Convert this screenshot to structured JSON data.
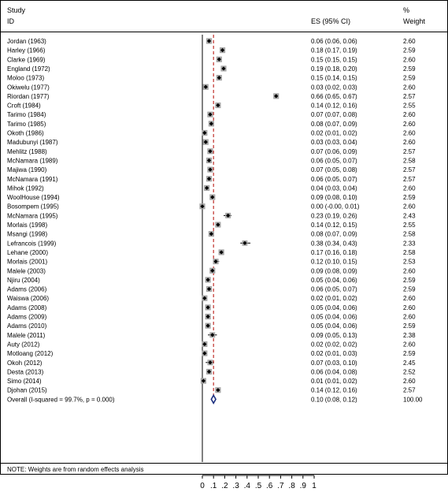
{
  "header": {
    "study_label": "Study",
    "id_label": "ID",
    "es_label": "ES (95% CI)",
    "weight_label_pct": "%",
    "weight_label": "Weight"
  },
  "note": "NOTE: Weights are from random effects analysis",
  "chart_data": {
    "type": "forest",
    "title": "",
    "xlabel": "",
    "xlim": [
      0,
      1
    ],
    "x_ticks": [
      "0",
      ".1",
      ".2",
      ".3",
      ".4",
      ".5",
      ".6",
      ".7",
      ".8",
      ".9",
      "1"
    ],
    "null_line": 0,
    "colors": {
      "box": "#a6a6a6",
      "point": "#000000",
      "ci": "#000000",
      "overall_line": "#c0302b",
      "diamond": "#1c2f7f"
    },
    "studies": [
      {
        "id": "Jordan (1963)",
        "es": 0.06,
        "lo": 0.06,
        "hi": 0.06,
        "es_text": "0.06 (0.06, 0.06)",
        "weight": "2.60"
      },
      {
        "id": "Harley (1966)",
        "es": 0.18,
        "lo": 0.17,
        "hi": 0.19,
        "es_text": "0.18 (0.17, 0.19)",
        "weight": "2.59"
      },
      {
        "id": "Clarke (1969)",
        "es": 0.15,
        "lo": 0.15,
        "hi": 0.15,
        "es_text": "0.15 (0.15, 0.15)",
        "weight": "2.60"
      },
      {
        "id": "England (1972)",
        "es": 0.19,
        "lo": 0.18,
        "hi": 0.2,
        "es_text": "0.19 (0.18, 0.20)",
        "weight": "2.59"
      },
      {
        "id": "Moloo (1973)",
        "es": 0.15,
        "lo": 0.14,
        "hi": 0.15,
        "es_text": "0.15 (0.14, 0.15)",
        "weight": "2.59"
      },
      {
        "id": "Okiwelu (1977)",
        "es": 0.03,
        "lo": 0.02,
        "hi": 0.03,
        "es_text": "0.03 (0.02, 0.03)",
        "weight": "2.60"
      },
      {
        "id": "Riordan (1977)",
        "es": 0.66,
        "lo": 0.65,
        "hi": 0.67,
        "es_text": "0.66 (0.65, 0.67)",
        "weight": "2.57"
      },
      {
        "id": "Croft (1984)",
        "es": 0.14,
        "lo": 0.12,
        "hi": 0.16,
        "es_text": "0.14 (0.12, 0.16)",
        "weight": "2.55"
      },
      {
        "id": "Tarimo (1984)",
        "es": 0.07,
        "lo": 0.07,
        "hi": 0.08,
        "es_text": "0.07 (0.07, 0.08)",
        "weight": "2.60"
      },
      {
        "id": "Tarimo (1985)",
        "es": 0.08,
        "lo": 0.07,
        "hi": 0.09,
        "es_text": "0.08 (0.07, 0.09)",
        "weight": "2.60"
      },
      {
        "id": "Okoth (1986)",
        "es": 0.02,
        "lo": 0.01,
        "hi": 0.02,
        "es_text": "0.02 (0.01, 0.02)",
        "weight": "2.60"
      },
      {
        "id": "Madubunyi (1987)",
        "es": 0.03,
        "lo": 0.03,
        "hi": 0.04,
        "es_text": "0.03 (0.03, 0.04)",
        "weight": "2.60"
      },
      {
        "id": "Mehlitz (1988)",
        "es": 0.07,
        "lo": 0.06,
        "hi": 0.09,
        "es_text": "0.07 (0.06, 0.09)",
        "weight": "2.57"
      },
      {
        "id": "McNamara (1989)",
        "es": 0.06,
        "lo": 0.05,
        "hi": 0.07,
        "es_text": "0.06 (0.05, 0.07)",
        "weight": "2.58"
      },
      {
        "id": "Majiwa (1990)",
        "es": 0.07,
        "lo": 0.05,
        "hi": 0.08,
        "es_text": "0.07 (0.05, 0.08)",
        "weight": "2.57"
      },
      {
        "id": "McNamara (1991)",
        "es": 0.06,
        "lo": 0.05,
        "hi": 0.07,
        "es_text": "0.06 (0.05, 0.07)",
        "weight": "2.57"
      },
      {
        "id": "Mihok (1992)",
        "es": 0.04,
        "lo": 0.03,
        "hi": 0.04,
        "es_text": "0.04 (0.03, 0.04)",
        "weight": "2.60"
      },
      {
        "id": "WoolHouse (1994)",
        "es": 0.09,
        "lo": 0.08,
        "hi": 0.1,
        "es_text": "0.09 (0.08, 0.10)",
        "weight": "2.59"
      },
      {
        "id": "Bosompem (1995)",
        "es": 0.0,
        "lo": -0.0,
        "hi": 0.01,
        "es_text": "0.00 (-0.00, 0.01)",
        "weight": "2.60"
      },
      {
        "id": "McNamara (1995)",
        "es": 0.23,
        "lo": 0.19,
        "hi": 0.26,
        "es_text": "0.23 (0.19, 0.26)",
        "weight": "2.43"
      },
      {
        "id": "Morlais (1998)",
        "es": 0.14,
        "lo": 0.12,
        "hi": 0.15,
        "es_text": "0.14 (0.12, 0.15)",
        "weight": "2.55"
      },
      {
        "id": "Msangi (1998)",
        "es": 0.08,
        "lo": 0.07,
        "hi": 0.09,
        "es_text": "0.08 (0.07, 0.09)",
        "weight": "2.58"
      },
      {
        "id": "Lefrancois (1999)",
        "es": 0.38,
        "lo": 0.34,
        "hi": 0.43,
        "es_text": "0.38 (0.34, 0.43)",
        "weight": "2.33"
      },
      {
        "id": "Lehane (2000)",
        "es": 0.17,
        "lo": 0.16,
        "hi": 0.18,
        "es_text": "0.17 (0.16, 0.18)",
        "weight": "2.58"
      },
      {
        "id": "Morlais (2001)",
        "es": 0.12,
        "lo": 0.1,
        "hi": 0.15,
        "es_text": "0.12 (0.10, 0.15)",
        "weight": "2.53"
      },
      {
        "id": "Malele (2003)",
        "es": 0.09,
        "lo": 0.08,
        "hi": 0.09,
        "es_text": "0.09 (0.08, 0.09)",
        "weight": "2.60"
      },
      {
        "id": "Njiru (2004)",
        "es": 0.05,
        "lo": 0.04,
        "hi": 0.06,
        "es_text": "0.05 (0.04, 0.06)",
        "weight": "2.59"
      },
      {
        "id": "Adams (2006)",
        "es": 0.06,
        "lo": 0.05,
        "hi": 0.07,
        "es_text": "0.06 (0.05, 0.07)",
        "weight": "2.59"
      },
      {
        "id": "Waiswa (2006)",
        "es": 0.02,
        "lo": 0.01,
        "hi": 0.02,
        "es_text": "0.02 (0.01, 0.02)",
        "weight": "2.60"
      },
      {
        "id": "Adams (2008)",
        "es": 0.05,
        "lo": 0.04,
        "hi": 0.06,
        "es_text": "0.05 (0.04, 0.06)",
        "weight": "2.60"
      },
      {
        "id": "Adams (2009)",
        "es": 0.05,
        "lo": 0.04,
        "hi": 0.06,
        "es_text": "0.05 (0.04, 0.06)",
        "weight": "2.60"
      },
      {
        "id": "Adams (2010)",
        "es": 0.05,
        "lo": 0.04,
        "hi": 0.06,
        "es_text": "0.05 (0.04, 0.06)",
        "weight": "2.59"
      },
      {
        "id": "Malele (2011)",
        "es": 0.09,
        "lo": 0.05,
        "hi": 0.13,
        "es_text": "0.09 (0.05, 0.13)",
        "weight": "2.38"
      },
      {
        "id": "Auty (2012)",
        "es": 0.02,
        "lo": 0.02,
        "hi": 0.02,
        "es_text": "0.02 (0.02, 0.02)",
        "weight": "2.60"
      },
      {
        "id": "Motloang (2012)",
        "es": 0.02,
        "lo": 0.01,
        "hi": 0.03,
        "es_text": "0.02 (0.01, 0.03)",
        "weight": "2.59"
      },
      {
        "id": "Okoh (2012)",
        "es": 0.07,
        "lo": 0.03,
        "hi": 0.1,
        "es_text": "0.07 (0.03, 0.10)",
        "weight": "2.45"
      },
      {
        "id": "Desta (2013)",
        "es": 0.06,
        "lo": 0.04,
        "hi": 0.08,
        "es_text": "0.06 (0.04, 0.08)",
        "weight": "2.52"
      },
      {
        "id": "Simo (2014)",
        "es": 0.01,
        "lo": 0.01,
        "hi": 0.02,
        "es_text": "0.01 (0.01, 0.02)",
        "weight": "2.60"
      },
      {
        "id": "Djohan (2015)",
        "es": 0.14,
        "lo": 0.12,
        "hi": 0.16,
        "es_text": "0.14 (0.12, 0.16)",
        "weight": "2.57"
      }
    ],
    "overall": {
      "label": "Overall  (I-squared = 99.7%, p = 0.000)",
      "es": 0.1,
      "lo": 0.08,
      "hi": 0.12,
      "es_text": "0.10 (0.08, 0.12)",
      "weight": "100.00"
    }
  }
}
